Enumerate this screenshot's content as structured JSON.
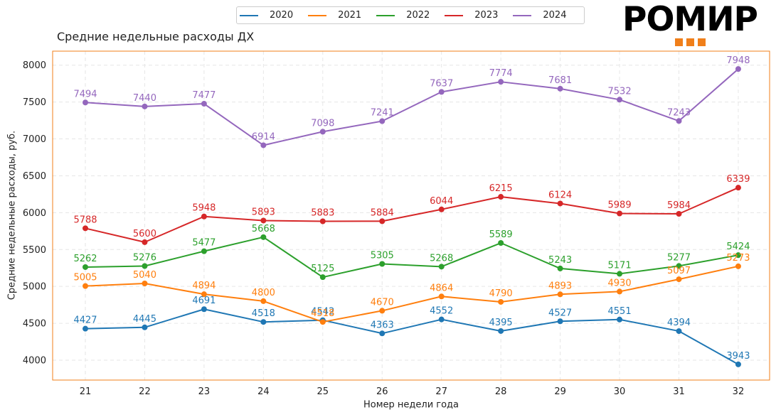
{
  "logo": {
    "text": "РОМИР",
    "square_color": "#f07f1a"
  },
  "chart_data": {
    "type": "line",
    "title": "Средние недельные расходы ДХ",
    "xlabel": "Номер недели года",
    "ylabel": "Средние недельные расходы, руб.",
    "x": [
      21,
      22,
      23,
      24,
      25,
      26,
      27,
      28,
      29,
      30,
      31,
      32
    ],
    "ylim": [
      3730,
      8190
    ],
    "yticks": [
      4000,
      4500,
      5000,
      5500,
      6000,
      6500,
      7000,
      7500,
      8000
    ],
    "grid": true,
    "legend": "top-center",
    "frame_color": "#f07f1a",
    "series": [
      {
        "name": "2020",
        "color": "#1f77b4",
        "values": [
          4427,
          4445,
          4691,
          4518,
          4542,
          4363,
          4552,
          4395,
          4527,
          4551,
          4394,
          3943
        ]
      },
      {
        "name": "2021",
        "color": "#ff7f0e",
        "values": [
          5005,
          5040,
          4894,
          4800,
          4518,
          4670,
          4864,
          4790,
          4893,
          4930,
          5097,
          5273
        ]
      },
      {
        "name": "2022",
        "color": "#2ca02c",
        "values": [
          5262,
          5276,
          5477,
          5668,
          5125,
          5305,
          5268,
          5589,
          5243,
          5171,
          5277,
          5424
        ]
      },
      {
        "name": "2023",
        "color": "#d62728",
        "values": [
          5788,
          5600,
          5948,
          5893,
          5883,
          5884,
          6044,
          6215,
          6124,
          5989,
          5984,
          6339
        ]
      },
      {
        "name": "2024",
        "color": "#9467bd",
        "values": [
          7494,
          7440,
          7477,
          6914,
          7098,
          7241,
          7637,
          7774,
          7681,
          7532,
          7243,
          7948
        ]
      }
    ]
  }
}
